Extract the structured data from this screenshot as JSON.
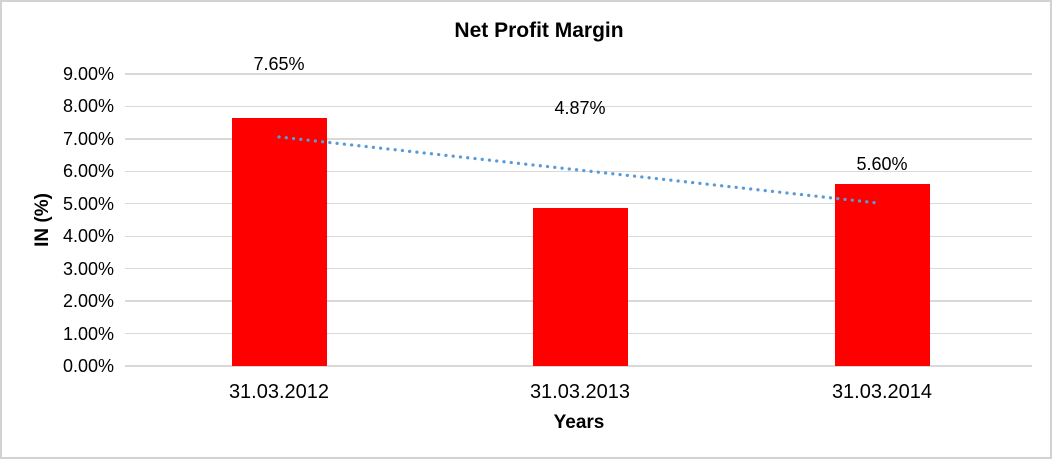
{
  "chart_data": {
    "type": "bar",
    "title": "Net Profit Margin",
    "xlabel": "Years",
    "ylabel": "IN (%)",
    "categories": [
      "31.03.2012",
      "31.03.2013",
      "31.03.2014"
    ],
    "values": [
      7.65,
      4.87,
      5.6
    ],
    "data_labels": [
      "7.65%",
      "4.87%",
      "5.60%"
    ],
    "data_label_positions": [
      9.31,
      7.95,
      6.23
    ],
    "ylim": [
      0,
      9
    ],
    "y_ticks": [
      {
        "value": 9,
        "label": "9.00%"
      },
      {
        "value": 8,
        "label": "8.00%"
      },
      {
        "value": 7,
        "label": "7.00%"
      },
      {
        "value": 6,
        "label": "6.00%"
      },
      {
        "value": 5,
        "label": "5.00%"
      },
      {
        "value": 4,
        "label": "4.00%"
      },
      {
        "value": 3,
        "label": "3.00%"
      },
      {
        "value": 2,
        "label": "2.00%"
      },
      {
        "value": 1,
        "label": "1.00%"
      },
      {
        "value": 0,
        "label": "0.00%"
      }
    ],
    "grid": true,
    "legend": false,
    "trendline": {
      "type": "linear",
      "style": "dotted",
      "start_value": 7.06,
      "end_value": 5.02
    }
  },
  "colors": {
    "bar": "#FF0000",
    "trendline": "#5B9BD5",
    "gridline": "#D9D9D9",
    "text": "#000000",
    "frame_border": "#D2D2D2",
    "background": "#FFFFFF"
  }
}
